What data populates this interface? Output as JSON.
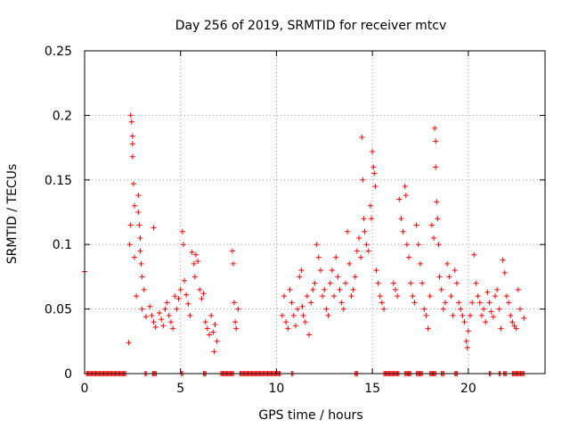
{
  "chart_data": {
    "type": "scatter",
    "title": "Day 256 of 2019, SRMTID for receiver mtcv",
    "xlabel": "GPS time / hours",
    "ylabel": "SRMTID / TECUs",
    "xlim": [
      0,
      24
    ],
    "ylim": [
      0,
      0.25
    ],
    "xticks": [
      "0",
      "5",
      "10",
      "15",
      "20"
    ],
    "xtick_values": [
      0,
      5,
      10,
      15,
      20
    ],
    "yticks": [
      "0",
      "0.05",
      "0.1",
      "0.15",
      "0.2",
      "0.25"
    ],
    "ytick_values": [
      0,
      0.05,
      0.1,
      0.15,
      0.2,
      0.25
    ],
    "grid": true,
    "marker": "+",
    "color": "#ff0000",
    "series": [
      {
        "name": "SRMTID",
        "points": [
          [
            0.0,
            0.079
          ],
          [
            2.3,
            0.024
          ],
          [
            2.4,
            0.2
          ],
          [
            2.45,
            0.195
          ],
          [
            2.5,
            0.184
          ],
          [
            2.5,
            0.178
          ],
          [
            2.5,
            0.168
          ],
          [
            2.55,
            0.147
          ],
          [
            2.6,
            0.13
          ],
          [
            2.4,
            0.115
          ],
          [
            2.35,
            0.1
          ],
          [
            2.6,
            0.09
          ],
          [
            2.7,
            0.06
          ],
          [
            2.8,
            0.138
          ],
          [
            2.8,
            0.125
          ],
          [
            2.85,
            0.115
          ],
          [
            2.9,
            0.105
          ],
          [
            2.9,
            0.095
          ],
          [
            2.95,
            0.085
          ],
          [
            3.0,
            0.075
          ],
          [
            3.1,
            0.065
          ],
          [
            3.0,
            0.05
          ],
          [
            3.2,
            0.044
          ],
          [
            3.4,
            0.052
          ],
          [
            3.5,
            0.045
          ],
          [
            3.6,
            0.04
          ],
          [
            3.7,
            0.036
          ],
          [
            3.6,
            0.113
          ],
          [
            3.9,
            0.047
          ],
          [
            4.0,
            0.042
          ],
          [
            4.1,
            0.037
          ],
          [
            4.2,
            0.05
          ],
          [
            4.3,
            0.055
          ],
          [
            4.4,
            0.045
          ],
          [
            4.5,
            0.04
          ],
          [
            4.6,
            0.035
          ],
          [
            4.7,
            0.06
          ],
          [
            4.8,
            0.05
          ],
          [
            4.9,
            0.058
          ],
          [
            5.0,
            0.065
          ],
          [
            5.1,
            0.11
          ],
          [
            5.15,
            0.1
          ],
          [
            5.2,
            0.072
          ],
          [
            5.3,
            0.061
          ],
          [
            5.4,
            0.054
          ],
          [
            5.5,
            0.045
          ],
          [
            5.6,
            0.094
          ],
          [
            5.7,
            0.085
          ],
          [
            5.75,
            0.075
          ],
          [
            5.8,
            0.092
          ],
          [
            5.9,
            0.087
          ],
          [
            6.0,
            0.065
          ],
          [
            6.1,
            0.058
          ],
          [
            6.2,
            0.062
          ],
          [
            6.3,
            0.04
          ],
          [
            6.4,
            0.035
          ],
          [
            6.5,
            0.03
          ],
          [
            6.6,
            0.045
          ],
          [
            6.7,
            0.032
          ],
          [
            6.8,
            0.038
          ],
          [
            6.9,
            0.025
          ],
          [
            6.75,
            0.017
          ],
          [
            7.7,
            0.095
          ],
          [
            7.75,
            0.085
          ],
          [
            7.8,
            0.055
          ],
          [
            7.85,
            0.04
          ],
          [
            7.9,
            0.035
          ],
          [
            8.0,
            0.05
          ],
          [
            10.3,
            0.045
          ],
          [
            10.4,
            0.06
          ],
          [
            10.5,
            0.04
          ],
          [
            10.6,
            0.035
          ],
          [
            10.7,
            0.065
          ],
          [
            10.8,
            0.055
          ],
          [
            10.9,
            0.045
          ],
          [
            11.0,
            0.037
          ],
          [
            11.1,
            0.05
          ],
          [
            11.2,
            0.075
          ],
          [
            11.3,
            0.08
          ],
          [
            11.35,
            0.052
          ],
          [
            11.4,
            0.045
          ],
          [
            11.5,
            0.04
          ],
          [
            11.6,
            0.06
          ],
          [
            11.7,
            0.03
          ],
          [
            11.8,
            0.055
          ],
          [
            11.9,
            0.065
          ],
          [
            12.0,
            0.07
          ],
          [
            12.1,
            0.1
          ],
          [
            12.2,
            0.09
          ],
          [
            12.3,
            0.08
          ],
          [
            12.4,
            0.06
          ],
          [
            12.5,
            0.065
          ],
          [
            12.6,
            0.05
          ],
          [
            12.7,
            0.045
          ],
          [
            12.8,
            0.07
          ],
          [
            12.9,
            0.08
          ],
          [
            13.0,
            0.06
          ],
          [
            13.1,
            0.09
          ],
          [
            13.2,
            0.075
          ],
          [
            13.3,
            0.065
          ],
          [
            13.4,
            0.055
          ],
          [
            13.5,
            0.05
          ],
          [
            13.6,
            0.07
          ],
          [
            13.7,
            0.11
          ],
          [
            13.8,
            0.085
          ],
          [
            13.9,
            0.06
          ],
          [
            14.0,
            0.065
          ],
          [
            14.1,
            0.075
          ],
          [
            14.2,
            0.095
          ],
          [
            14.3,
            0.105
          ],
          [
            14.4,
            0.09
          ],
          [
            14.45,
            0.183
          ],
          [
            14.5,
            0.15
          ],
          [
            14.55,
            0.12
          ],
          [
            14.6,
            0.11
          ],
          [
            14.7,
            0.1
          ],
          [
            14.8,
            0.095
          ],
          [
            14.9,
            0.13
          ],
          [
            14.95,
            0.12
          ],
          [
            15.0,
            0.172
          ],
          [
            15.05,
            0.16
          ],
          [
            15.1,
            0.155
          ],
          [
            15.15,
            0.145
          ],
          [
            15.2,
            0.08
          ],
          [
            15.3,
            0.07
          ],
          [
            15.4,
            0.06
          ],
          [
            15.5,
            0.055
          ],
          [
            15.6,
            0.05
          ],
          [
            16.1,
            0.07
          ],
          [
            16.2,
            0.065
          ],
          [
            16.3,
            0.06
          ],
          [
            16.4,
            0.135
          ],
          [
            16.5,
            0.12
          ],
          [
            16.6,
            0.11
          ],
          [
            16.7,
            0.145
          ],
          [
            16.75,
            0.138
          ],
          [
            16.8,
            0.1
          ],
          [
            16.9,
            0.09
          ],
          [
            17.0,
            0.07
          ],
          [
            17.1,
            0.06
          ],
          [
            17.2,
            0.055
          ],
          [
            17.3,
            0.115
          ],
          [
            17.4,
            0.1
          ],
          [
            17.5,
            0.085
          ],
          [
            17.6,
            0.07
          ],
          [
            17.7,
            0.05
          ],
          [
            17.8,
            0.045
          ],
          [
            17.9,
            0.035
          ],
          [
            18.0,
            0.06
          ],
          [
            18.1,
            0.115
          ],
          [
            18.2,
            0.105
          ],
          [
            18.25,
            0.19
          ],
          [
            18.3,
            0.18
          ],
          [
            18.3,
            0.16
          ],
          [
            18.35,
            0.133
          ],
          [
            18.4,
            0.12
          ],
          [
            18.45,
            0.1
          ],
          [
            18.5,
            0.075
          ],
          [
            18.6,
            0.065
          ],
          [
            18.7,
            0.05
          ],
          [
            18.8,
            0.055
          ],
          [
            18.9,
            0.085
          ],
          [
            19.0,
            0.075
          ],
          [
            19.1,
            0.06
          ],
          [
            19.2,
            0.045
          ],
          [
            19.3,
            0.08
          ],
          [
            19.4,
            0.07
          ],
          [
            19.5,
            0.055
          ],
          [
            19.6,
            0.05
          ],
          [
            19.7,
            0.045
          ],
          [
            19.8,
            0.04
          ],
          [
            19.9,
            0.025
          ],
          [
            19.95,
            0.02
          ],
          [
            20.0,
            0.033
          ],
          [
            20.1,
            0.045
          ],
          [
            20.2,
            0.055
          ],
          [
            20.3,
            0.092
          ],
          [
            20.4,
            0.07
          ],
          [
            20.5,
            0.06
          ],
          [
            20.6,
            0.055
          ],
          [
            20.7,
            0.045
          ],
          [
            20.8,
            0.05
          ],
          [
            20.9,
            0.04
          ],
          [
            21.0,
            0.063
          ],
          [
            21.1,
            0.055
          ],
          [
            21.2,
            0.048
          ],
          [
            21.3,
            0.044
          ],
          [
            21.4,
            0.06
          ],
          [
            21.5,
            0.065
          ],
          [
            21.6,
            0.05
          ],
          [
            21.7,
            0.035
          ],
          [
            21.8,
            0.088
          ],
          [
            21.9,
            0.078
          ],
          [
            22.0,
            0.06
          ],
          [
            22.1,
            0.055
          ],
          [
            22.2,
            0.045
          ],
          [
            22.3,
            0.04
          ],
          [
            22.4,
            0.037
          ],
          [
            22.5,
            0.035
          ],
          [
            22.6,
            0.065
          ],
          [
            22.7,
            0.05
          ],
          [
            22.9,
            0.043
          ]
        ],
        "zero_ranges": [
          [
            0.1,
            2.15
          ],
          [
            3.15,
            3.25
          ],
          [
            3.55,
            3.75
          ],
          [
            5.05,
            5.15
          ],
          [
            6.2,
            6.35
          ],
          [
            7.1,
            7.8
          ],
          [
            8.1,
            10.2
          ],
          [
            10.8,
            10.9
          ],
          [
            14.1,
            14.25
          ],
          [
            15.6,
            16.4
          ],
          [
            16.7,
            17.05
          ],
          [
            17.3,
            17.65
          ],
          [
            18.0,
            18.35
          ],
          [
            18.6,
            18.75
          ],
          [
            19.3,
            19.45
          ],
          [
            21.1,
            21.2
          ],
          [
            21.6,
            21.7
          ],
          [
            21.85,
            22.0
          ],
          [
            22.3,
            22.95
          ]
        ]
      }
    ]
  }
}
